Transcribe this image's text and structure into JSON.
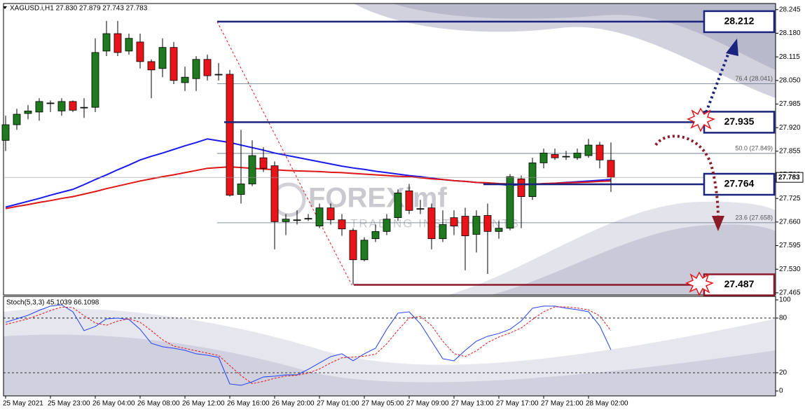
{
  "chart_data": [
    {
      "type": "candlestick",
      "title": "XAGUSD.i,H1 27.830 27.879 27.743 27.783",
      "categories": [
        "25 May 2021",
        null,
        null,
        null,
        "25 May 23:00",
        null,
        null,
        null,
        "26 May 04:00",
        null,
        null,
        null,
        "26 May 08:00",
        null,
        null,
        null,
        "26 May 12:00",
        null,
        null,
        null,
        "26 May 16:00",
        null,
        null,
        null,
        "26 May 20:00",
        null,
        null,
        null,
        "27 May 01:00",
        null,
        null,
        null,
        "27 May 05:00",
        null,
        null,
        null,
        "27 May 09:00",
        null,
        null,
        null,
        "27 May 13:00",
        null,
        null,
        null,
        "27 May 17:00",
        null,
        null,
        null,
        "27 May 21:00",
        null,
        null,
        null,
        "28 May 02:00",
        null,
        null
      ],
      "open": [
        27.885,
        27.928,
        27.959,
        27.963,
        27.986,
        27.966,
        27.992,
        27.976,
        27.976,
        28.131,
        28.179,
        28.131,
        28.156,
        28.102,
        28.083,
        28.141,
        28.044,
        28.055,
        28.108,
        28.067,
        28.067,
        27.736,
        27.765,
        27.837,
        27.815,
        27.661,
        27.666,
        27.67,
        27.649,
        27.699,
        27.666,
        27.637,
        27.556,
        27.614,
        27.634,
        27.672,
        27.746,
        27.697,
        27.699,
        27.614,
        27.672,
        27.676,
        27.626,
        27.678,
        27.634,
        27.643,
        27.779,
        27.73,
        27.823,
        27.846,
        27.841,
        27.837,
        27.843,
        27.872,
        27.83
      ],
      "high": [
        27.953,
        27.972,
        27.982,
        28.001,
        27.995,
        28.001,
        27.995,
        28.001,
        28.166,
        28.214,
        28.214,
        28.179,
        28.179,
        28.108,
        28.166,
        28.156,
        28.088,
        28.117,
        28.121,
        28.098,
        28.079,
        27.914,
        27.885,
        27.866,
        27.827,
        27.682,
        27.692,
        27.682,
        27.711,
        27.711,
        27.682,
        27.643,
        27.618,
        27.653,
        27.682,
        27.75,
        27.765,
        27.721,
        27.711,
        27.692,
        27.692,
        27.699,
        27.692,
        27.711,
        27.663,
        27.792,
        27.788,
        27.837,
        27.862,
        27.862,
        27.856,
        27.862,
        27.889,
        27.881,
        27.879
      ],
      "low": [
        27.856,
        27.914,
        27.943,
        27.939,
        27.963,
        27.953,
        27.963,
        27.947,
        27.963,
        28.117,
        28.117,
        28.121,
        28.083,
        28.001,
        28.059,
        28.04,
        28.021,
        28.021,
        28.05,
        28.05,
        27.73,
        27.711,
        27.759,
        27.798,
        27.585,
        27.624,
        27.653,
        27.663,
        27.643,
        27.653,
        27.622,
        27.487,
        27.552,
        27.605,
        27.624,
        27.663,
        27.682,
        27.682,
        27.585,
        27.605,
        27.624,
        27.527,
        27.576,
        27.517,
        27.614,
        27.637,
        27.643,
        27.721,
        27.808,
        27.831,
        27.831,
        27.831,
        27.837,
        27.808,
        27.743
      ],
      "close": [
        27.928,
        27.957,
        27.966,
        27.992,
        27.988,
        27.992,
        27.968,
        27.976,
        28.127,
        28.179,
        28.127,
        28.166,
        28.102,
        28.079,
        28.141,
        28.05,
        28.059,
        28.108,
        28.063,
        28.067,
        27.734,
        27.765,
        27.843,
        27.808,
        27.661,
        27.668,
        27.666,
        27.67,
        27.699,
        27.666,
        27.641,
        27.556,
        27.61,
        27.634,
        27.668,
        27.74,
        27.692,
        27.697,
        27.614,
        27.653,
        27.649,
        27.622,
        27.676,
        27.634,
        27.643,
        27.785,
        27.73,
        27.823,
        27.85,
        27.837,
        27.841,
        27.85,
        27.872,
        27.831,
        27.783
      ],
      "up_color": "#1f7a1f",
      "down_color": "#e8141a",
      "series": [
        {
          "color": "#1a1aee",
          "values": [
            27.701,
            27.709,
            27.717,
            27.725,
            27.734,
            27.742,
            27.75,
            27.763,
            27.777,
            27.79,
            27.804,
            27.817,
            27.831,
            27.841,
            27.85,
            27.86,
            27.87,
            27.879,
            27.889,
            27.884,
            27.879,
            27.872,
            27.865,
            27.858,
            27.85,
            27.844,
            27.838,
            27.832,
            27.826,
            27.82,
            27.814,
            27.809,
            27.805,
            27.8,
            27.796,
            27.792,
            27.788,
            27.785,
            27.781,
            27.777,
            27.774,
            27.772,
            27.769,
            27.767,
            27.764,
            27.761,
            27.763,
            27.764,
            27.765,
            27.767,
            27.769,
            27.771,
            27.773,
            27.775,
            27.777
          ]
        },
        {
          "color": "#e01515",
          "values": [
            27.697,
            27.703,
            27.708,
            27.714,
            27.719,
            27.725,
            27.73,
            27.737,
            27.744,
            27.752,
            27.759,
            27.766,
            27.773,
            27.779,
            27.785,
            27.79,
            27.796,
            27.802,
            27.808,
            27.81,
            27.812,
            27.81,
            27.808,
            27.806,
            27.804,
            27.802,
            27.801,
            27.8,
            27.799,
            27.797,
            27.796,
            27.794,
            27.792,
            27.79,
            27.788,
            27.786,
            27.785,
            27.782,
            27.779,
            27.777,
            27.774,
            27.772,
            27.769,
            27.768,
            27.766,
            27.765,
            27.763,
            27.764,
            27.766,
            27.767,
            27.768,
            27.769,
            27.77,
            27.772,
            27.773
          ]
        }
      ],
      "ylim": [
        27.459,
        28.262
      ],
      "yticks": [
        {
          "value": 28.245,
          "label": "28.245"
        },
        {
          "value": 28.18,
          "label": "28.180"
        },
        {
          "value": 28.115,
          "label": "28.115"
        },
        {
          "value": 28.05,
          "label": "28.050"
        },
        {
          "value": 27.985,
          "label": "27.985"
        },
        {
          "value": 27.92,
          "label": "27.920"
        },
        {
          "value": 27.855,
          "label": "27.855"
        },
        {
          "value": 27.79,
          "label": "27.790"
        },
        {
          "value": 27.725,
          "label": "27.725"
        },
        {
          "value": 27.66,
          "label": "27.660"
        },
        {
          "value": 27.595,
          "label": "27.595"
        },
        {
          "value": 27.53,
          "label": "27.530"
        },
        {
          "value": 27.465,
          "label": "27.465"
        }
      ],
      "levels": [
        {
          "value": 28.212,
          "color": "#1a237e"
        },
        {
          "value": 27.935,
          "color": "#1a237e"
        },
        {
          "value": 27.764,
          "color": "#1a237e"
        },
        {
          "value": 27.487,
          "color": "#8b1a2a"
        }
      ],
      "fib_levels": [
        {
          "value": 28.041,
          "label": "76.4 (28.041)"
        },
        {
          "value": 27.849,
          "label": "50.0 (27.849)"
        },
        {
          "value": 27.658,
          "label": "23.6 (27.658)"
        }
      ],
      "watermark": [
        "FOREXimf",
        "TRADING INSTRUMENTS"
      ]
    },
    {
      "type": "line",
      "title": "Stoch(5,3,3) 45.1039 66.1098",
      "series": [
        {
          "color": "#2040ff",
          "values": [
            75.4,
            79.2,
            83.1,
            88.5,
            93.1,
            94.6,
            86.9,
            66.2,
            70.8,
            79.2,
            80.0,
            78.5,
            67.7,
            52.3,
            48.5,
            46.9,
            44.6,
            40.8,
            39.2,
            36.9,
            7.7,
            6.2,
            10.0,
            15.4,
            16.2,
            17.7,
            17.7,
            23.8,
            30.8,
            37.7,
            40.8,
            33.1,
            40.8,
            46.9,
            67.7,
            85.4,
            86.9,
            73.8,
            54.6,
            35.4,
            33.1,
            44.6,
            54.6,
            60.0,
            63.1,
            67.7,
            76.9,
            90.8,
            93.1,
            93.1,
            90.8,
            89.2,
            86.9,
            71.5,
            45.1039
          ]
        },
        {
          "color": "#e8141a",
          "dash": true,
          "values": [
            73.0,
            76.0,
            79.2,
            83.6,
            88.2,
            92.1,
            91.5,
            82.6,
            74.6,
            72.1,
            76.7,
            79.2,
            75.4,
            66.2,
            56.2,
            49.2,
            46.7,
            44.1,
            41.5,
            39.0,
            27.9,
            16.9,
            8.0,
            10.5,
            13.9,
            16.4,
            17.2,
            19.7,
            24.1,
            30.8,
            36.4,
            37.2,
            38.2,
            40.3,
            51.8,
            66.7,
            80.0,
            82.0,
            71.8,
            54.6,
            41.0,
            37.7,
            44.1,
            53.1,
            59.2,
            63.6,
            69.2,
            78.5,
            86.9,
            92.3,
            92.3,
            91.0,
            89.0,
            82.5,
            66.1098
          ]
        }
      ],
      "ylim": [
        -5.4,
        103.8
      ],
      "yticks": [
        100,
        80,
        20,
        0
      ],
      "levels": [
        80,
        20
      ]
    }
  ]
}
